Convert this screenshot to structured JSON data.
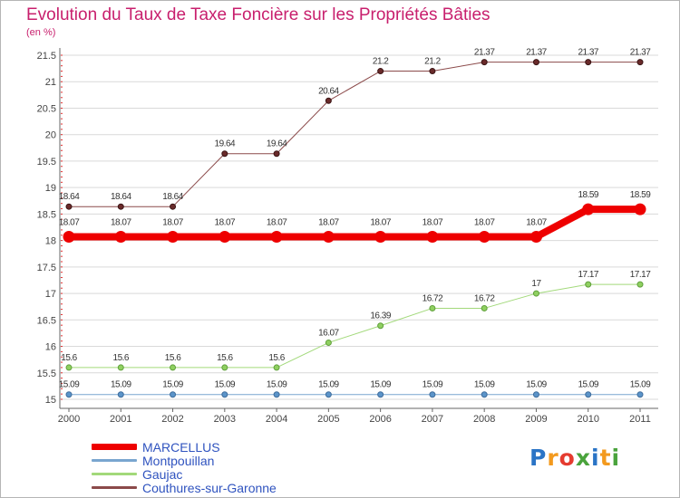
{
  "title": "Evolution du Taux de Taxe Foncière sur les Propriétés Bâties",
  "subtitle": "(en %)",
  "logo": {
    "letters": [
      "P",
      "r",
      "o",
      "x",
      "i",
      "t",
      "i"
    ],
    "colors": [
      "#2a74c6",
      "#f39a1e",
      "#e53b2f",
      "#4aa33c",
      "#2a74c6",
      "#f39a1e",
      "#4aa33c"
    ]
  },
  "chart_data": {
    "type": "line",
    "title": "Evolution du Taux de Taxe Foncière sur les Propriétés Bâties",
    "ylabel": "(en %)",
    "xlabel": "",
    "categories": [
      "2000",
      "2001",
      "2002",
      "2003",
      "2004",
      "2005",
      "2006",
      "2007",
      "2008",
      "2009",
      "2010",
      "2011"
    ],
    "ylim": [
      15,
      21.5
    ],
    "yticks": [
      "15",
      "15.5",
      "16",
      "16.5",
      "17",
      "17.5",
      "18",
      "18.5",
      "19",
      "19.5",
      "20",
      "20.5",
      "21",
      "21.5"
    ],
    "legend_position": "bottom-left",
    "series": [
      {
        "name": "MARCELLUS",
        "color": "#ee0000",
        "values": [
          18.07,
          18.07,
          18.07,
          18.07,
          18.07,
          18.07,
          18.07,
          18.07,
          18.07,
          18.07,
          18.59,
          18.59
        ],
        "labels": [
          "18.07",
          "18.07",
          "18.07",
          "18.07",
          "18.07",
          "18.07",
          "18.07",
          "18.07",
          "18.07",
          "18.07",
          "18.59",
          "18.59"
        ]
      },
      {
        "name": "Montpouillan",
        "color": "#79a6cf",
        "values": [
          15.09,
          15.09,
          15.09,
          15.09,
          15.09,
          15.09,
          15.09,
          15.09,
          15.09,
          15.09,
          15.09,
          15.09
        ],
        "labels": [
          "15.09",
          "15.09",
          "15.09",
          "15.09",
          "15.09",
          "15.09",
          "15.09",
          "15.09",
          "15.09",
          "15.09",
          "15.09",
          "15.09"
        ]
      },
      {
        "name": "Gaujac",
        "color": "#a2d97a",
        "values": [
          15.6,
          15.6,
          15.6,
          15.6,
          15.6,
          16.07,
          16.39,
          16.72,
          16.72,
          17,
          17.17,
          17.17
        ],
        "labels": [
          "15.6",
          "15.6",
          "15.6",
          "15.6",
          "15.6",
          "16.07",
          "16.39",
          "16.72",
          "16.72",
          "17",
          "17.17",
          "17.17"
        ]
      },
      {
        "name": "Couthures-sur-Garonne",
        "color": "#8b4a4a",
        "values": [
          18.64,
          18.64,
          18.64,
          19.64,
          19.64,
          20.64,
          21.2,
          21.2,
          21.37,
          21.37,
          21.37,
          21.37
        ],
        "labels": [
          "18.64",
          "18.64",
          "18.64",
          "19.64",
          "19.64",
          "20.64",
          "21.2",
          "21.2",
          "21.37",
          "21.37",
          "21.37",
          "21.37"
        ]
      }
    ]
  }
}
